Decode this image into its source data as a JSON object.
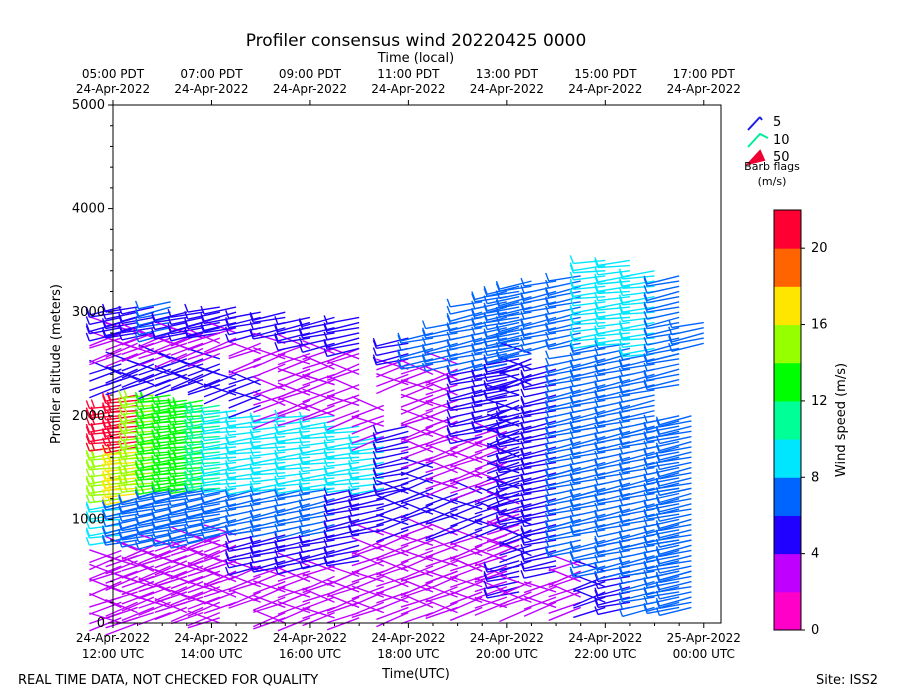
{
  "chart_data": {
    "type": "wind-barb-profile",
    "title": "Profiler consensus wind 20220425 0000",
    "top_axis_label": "Time (local)",
    "xlabel": "Time(UTC)",
    "ylabel": "Profiler altitude (meters)",
    "ylim": [
      0,
      5000
    ],
    "xlim_hours_utc": [
      12,
      24.35
    ],
    "y_ticks": [
      0,
      1000,
      2000,
      3000,
      4000,
      5000
    ],
    "x_ticks_utc": [
      {
        "hour": 12,
        "date": "24-Apr-2022",
        "time": "12:00 UTC"
      },
      {
        "hour": 14,
        "date": "24-Apr-2022",
        "time": "14:00 UTC"
      },
      {
        "hour": 16,
        "date": "24-Apr-2022",
        "time": "16:00 UTC"
      },
      {
        "hour": 18,
        "date": "24-Apr-2022",
        "time": "18:00 UTC"
      },
      {
        "hour": 20,
        "date": "24-Apr-2022",
        "time": "20:00 UTC"
      },
      {
        "hour": 22,
        "date": "24-Apr-2022",
        "time": "22:00 UTC"
      },
      {
        "hour": 24,
        "date": "25-Apr-2022",
        "time": "00:00 UTC"
      }
    ],
    "x_ticks_local": [
      {
        "hour": 12,
        "time": "05:00 PDT",
        "date": "24-Apr-2022"
      },
      {
        "hour": 14,
        "time": "07:00 PDT",
        "date": "24-Apr-2022"
      },
      {
        "hour": 16,
        "time": "09:00 PDT",
        "date": "24-Apr-2022"
      },
      {
        "hour": 18,
        "time": "11:00 PDT",
        "date": "24-Apr-2022"
      },
      {
        "hour": 20,
        "time": "13:00 PDT",
        "date": "24-Apr-2022"
      },
      {
        "hour": 22,
        "time": "15:00 PDT",
        "date": "24-Apr-2022"
      },
      {
        "hour": 24,
        "time": "17:00 PDT",
        "date": "24-Apr-2022"
      }
    ],
    "barb_legend": {
      "entries": [
        {
          "label": "5",
          "color": "#1e1ee6"
        },
        {
          "label": "10",
          "color": "#00ee99"
        },
        {
          "label": "50",
          "color": "#ee0033"
        }
      ],
      "title_line1": "Barb flags",
      "title_line2": "(m/s)"
    },
    "colorbar": {
      "label": "Wind speed (m/s)",
      "min": 0,
      "max": 22,
      "step": 2,
      "ticks": [
        0,
        4,
        8,
        12,
        16,
        20
      ],
      "colors": [
        "#ff00c8",
        "#c000ff",
        "#2000ff",
        "#0064ff",
        "#00e6ff",
        "#00ff96",
        "#00ff00",
        "#96ff00",
        "#ffe600",
        "#ff6400",
        "#ff0032"
      ]
    },
    "barb_columns": [
      {
        "t": 12.17,
        "layers": [
          [
            0,
            300,
            3
          ],
          [
            400,
            700,
            2
          ],
          [
            800,
            1200,
            8
          ],
          [
            1200,
            1700,
            14
          ],
          [
            1700,
            2100,
            20
          ],
          [
            2300,
            2500,
            4
          ],
          [
            2600,
            2850,
            3
          ],
          [
            2800,
            3050,
            5
          ]
        ]
      },
      {
        "t": 12.5,
        "layers": [
          [
            0,
            300,
            3
          ],
          [
            400,
            700,
            2
          ],
          [
            800,
            1200,
            7
          ],
          [
            1200,
            1700,
            16
          ],
          [
            1700,
            2200,
            20
          ],
          [
            2300,
            2500,
            4
          ],
          [
            2600,
            2800,
            3
          ],
          [
            2800,
            3050,
            5
          ]
        ]
      },
      {
        "t": 12.83,
        "layers": [
          [
            100,
            400,
            3
          ],
          [
            400,
            750,
            3
          ],
          [
            800,
            1250,
            6
          ],
          [
            1300,
            2200,
            15
          ],
          [
            2300,
            2550,
            4
          ],
          [
            2600,
            2800,
            3
          ],
          [
            2800,
            3050,
            5
          ]
        ]
      },
      {
        "t": 13.17,
        "layers": [
          [
            100,
            400,
            3
          ],
          [
            400,
            750,
            3
          ],
          [
            800,
            1300,
            6
          ],
          [
            1300,
            2200,
            13
          ],
          [
            2300,
            2550,
            4
          ],
          [
            2600,
            2800,
            3
          ],
          [
            2800,
            3100,
            7
          ]
        ]
      },
      {
        "t": 13.5,
        "layers": [
          [
            100,
            450,
            3
          ],
          [
            450,
            800,
            3
          ],
          [
            800,
            1300,
            6
          ],
          [
            1300,
            2150,
            12
          ],
          [
            2300,
            2550,
            4
          ],
          [
            2600,
            2800,
            3
          ],
          [
            2800,
            3000,
            5
          ]
        ]
      },
      {
        "t": 13.83,
        "layers": [
          [
            100,
            450,
            3
          ],
          [
            450,
            800,
            3
          ],
          [
            800,
            1300,
            6
          ],
          [
            1300,
            2150,
            12
          ],
          [
            2300,
            2550,
            4
          ],
          [
            2600,
            2800,
            3
          ],
          [
            2800,
            3000,
            5
          ]
        ]
      },
      {
        "t": 14.17,
        "layers": [
          [
            0,
            450,
            3
          ],
          [
            500,
            850,
            3
          ],
          [
            850,
            1300,
            6
          ],
          [
            1300,
            2100,
            10
          ],
          [
            2300,
            2550,
            4
          ],
          [
            2600,
            2800,
            3
          ],
          [
            2800,
            3050,
            5
          ]
        ]
      },
      {
        "t": 14.5,
        "layers": [
          [
            200,
            500,
            3
          ],
          [
            500,
            900,
            3
          ],
          [
            900,
            1300,
            6
          ],
          [
            1300,
            2050,
            9
          ],
          [
            2200,
            2400,
            4
          ],
          [
            2700,
            2850,
            3
          ],
          [
            2850,
            3050,
            5
          ]
        ]
      },
      {
        "t": 15.0,
        "layers": [
          [
            200,
            550,
            3
          ],
          [
            550,
            900,
            5
          ],
          [
            900,
            1300,
            6
          ],
          [
            1300,
            2000,
            9
          ],
          [
            2100,
            2400,
            4
          ],
          [
            2500,
            2700,
            2
          ],
          [
            2800,
            3000,
            5
          ]
        ]
      },
      {
        "t": 15.5,
        "layers": [
          [
            0,
            550,
            3
          ],
          [
            550,
            850,
            5
          ],
          [
            900,
            1300,
            6
          ],
          [
            1300,
            2000,
            9
          ],
          [
            2000,
            2300,
            3
          ],
          [
            2500,
            2700,
            3
          ],
          [
            2800,
            3000,
            5
          ]
        ]
      },
      {
        "t": 16.0,
        "layers": [
          [
            50,
            550,
            3
          ],
          [
            550,
            850,
            5
          ],
          [
            900,
            1300,
            6
          ],
          [
            1300,
            2000,
            9
          ],
          [
            2000,
            2300,
            3
          ],
          [
            2300,
            2700,
            3
          ],
          [
            2700,
            2950,
            5
          ]
        ]
      },
      {
        "t": 16.5,
        "layers": [
          [
            50,
            550,
            3
          ],
          [
            600,
            850,
            5
          ],
          [
            900,
            1300,
            6
          ],
          [
            1300,
            2000,
            9
          ],
          [
            2000,
            2300,
            3
          ],
          [
            2300,
            2650,
            3
          ],
          [
            2700,
            2950,
            5
          ]
        ]
      },
      {
        "t": 17.0,
        "layers": [
          [
            50,
            500,
            3
          ],
          [
            600,
            850,
            5
          ],
          [
            900,
            1300,
            5
          ],
          [
            1300,
            1900,
            9
          ],
          [
            2000,
            2300,
            3
          ],
          [
            2400,
            2650,
            3
          ],
          [
            2650,
            2950,
            5
          ]
        ]
      },
      {
        "t": 17.5,
        "layers": [
          [
            100,
            500,
            3
          ],
          [
            550,
            850,
            3
          ],
          [
            900,
            1300,
            5
          ],
          [
            1300,
            1800,
            8
          ],
          [
            1800,
            2100,
            3
          ]
        ]
      },
      {
        "t": 18.0,
        "layers": [
          [
            100,
            500,
            3
          ],
          [
            550,
            900,
            3
          ],
          [
            900,
            1300,
            4
          ],
          [
            1300,
            1900,
            5
          ],
          [
            2300,
            2550,
            3
          ],
          [
            2550,
            2750,
            5
          ]
        ]
      },
      {
        "t": 18.5,
        "layers": [
          [
            100,
            500,
            3
          ],
          [
            500,
            1000,
            3
          ],
          [
            1000,
            1600,
            4
          ],
          [
            1600,
            2000,
            3
          ],
          [
            2000,
            2500,
            3
          ],
          [
            2500,
            2800,
            7
          ]
        ]
      },
      {
        "t": 19.0,
        "layers": [
          [
            100,
            500,
            3
          ],
          [
            500,
            900,
            3
          ],
          [
            900,
            1300,
            4
          ],
          [
            1300,
            2000,
            3
          ],
          [
            2000,
            2500,
            3
          ],
          [
            2500,
            2900,
            7
          ]
        ]
      },
      {
        "t": 19.5,
        "layers": [
          [
            150,
            500,
            3
          ],
          [
            500,
            900,
            3
          ],
          [
            900,
            1300,
            4
          ],
          [
            1300,
            1800,
            3
          ],
          [
            1800,
            2500,
            5
          ],
          [
            2500,
            3100,
            7
          ]
        ]
      },
      {
        "t": 20.0,
        "layers": [
          [
            150,
            500,
            3
          ],
          [
            500,
            900,
            3
          ],
          [
            900,
            1300,
            4
          ],
          [
            1300,
            1900,
            3
          ],
          [
            1900,
            2500,
            5
          ],
          [
            2500,
            3200,
            6
          ]
        ]
      },
      {
        "t": 20.25,
        "layers": [
          [
            300,
            600,
            5
          ],
          [
            700,
            1200,
            3
          ],
          [
            1200,
            1800,
            4
          ],
          [
            1800,
            2200,
            4
          ],
          [
            2200,
            2600,
            5
          ],
          [
            2600,
            3250,
            6
          ]
        ]
      },
      {
        "t": 20.5,
        "layers": [
          [
            150,
            400,
            3
          ],
          [
            600,
            1000,
            4
          ],
          [
            1000,
            1600,
            5
          ],
          [
            1600,
            2100,
            5
          ],
          [
            2300,
            2600,
            4
          ],
          [
            2600,
            3300,
            7
          ]
        ]
      },
      {
        "t": 21.0,
        "layers": [
          [
            150,
            400,
            3
          ],
          [
            500,
            900,
            5
          ],
          [
            900,
            1500,
            5
          ],
          [
            1500,
            2100,
            5
          ],
          [
            2100,
            2500,
            5
          ],
          [
            2700,
            3300,
            6
          ]
        ]
      },
      {
        "t": 21.5,
        "layers": [
          [
            150,
            600,
            3
          ],
          [
            700,
            1000,
            6
          ],
          [
            1000,
            1500,
            6
          ],
          [
            1500,
            2100,
            6
          ],
          [
            2100,
            2600,
            6
          ],
          [
            2700,
            3350,
            7
          ]
        ]
      },
      {
        "t": 22.0,
        "layers": [
          [
            150,
            500,
            4
          ],
          [
            500,
            800,
            6
          ],
          [
            900,
            1300,
            6
          ],
          [
            1300,
            1900,
            7
          ],
          [
            1900,
            2700,
            6
          ],
          [
            2700,
            3500,
            8
          ]
        ]
      },
      {
        "t": 22.5,
        "layers": [
          [
            150,
            500,
            5
          ],
          [
            500,
            800,
            7
          ],
          [
            800,
            1300,
            7
          ],
          [
            1300,
            1900,
            7
          ],
          [
            1900,
            2700,
            6
          ],
          [
            2700,
            3500,
            9
          ]
        ]
      },
      {
        "t": 23.0,
        "layers": [
          [
            150,
            500,
            7
          ],
          [
            500,
            800,
            6
          ],
          [
            800,
            1300,
            6
          ],
          [
            1300,
            1900,
            6
          ],
          [
            1900,
            2600,
            6
          ],
          [
            2600,
            3400,
            8
          ]
        ]
      },
      {
        "t": 23.5,
        "layers": [
          [
            150,
            500,
            6
          ],
          [
            500,
            800,
            6
          ],
          [
            800,
            1300,
            6
          ],
          [
            1300,
            2000,
            6
          ],
          [
            2300,
            2600,
            6
          ],
          [
            2600,
            3350,
            7
          ]
        ]
      },
      {
        "t": 23.75,
        "layers": [
          [
            150,
            500,
            7
          ],
          [
            500,
            800,
            6
          ],
          [
            800,
            1300,
            6
          ],
          [
            1300,
            2000,
            6
          ]
        ]
      },
      {
        "t": 24.0,
        "layers": [
          [
            2700,
            2900,
            6
          ]
        ]
      }
    ]
  },
  "footer": {
    "left": "REAL TIME DATA, NOT CHECKED FOR QUALITY",
    "right": "Site: ISS2"
  }
}
